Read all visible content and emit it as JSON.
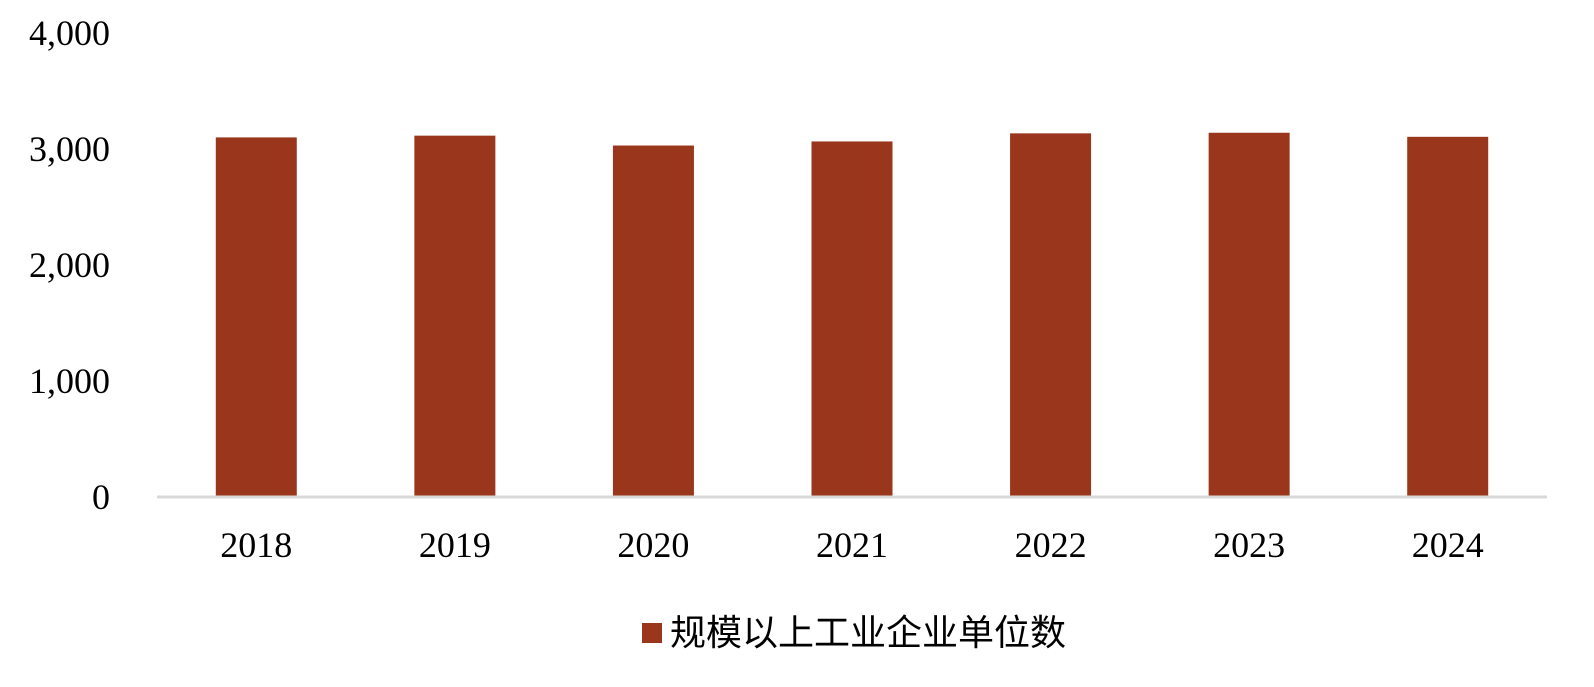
{
  "chart_data": {
    "type": "bar",
    "categories": [
      "2018",
      "2019",
      "2020",
      "2021",
      "2022",
      "2023",
      "2024"
    ],
    "series": [
      {
        "name": "规模以上工业企业单位数",
        "values": [
          3100,
          3115,
          3030,
          3065,
          3135,
          3140,
          3105
        ]
      }
    ],
    "ylim": [
      0,
      4000
    ],
    "yticks": [
      "0",
      "1,000",
      "2,000",
      "3,000",
      "4,000"
    ],
    "ytick_values": [
      0,
      1000,
      2000,
      3000,
      4000
    ],
    "grid": false,
    "legend_position": "bottom-center",
    "colors": {
      "bar": "#9A361B",
      "axis": "#D9D9D9"
    }
  }
}
